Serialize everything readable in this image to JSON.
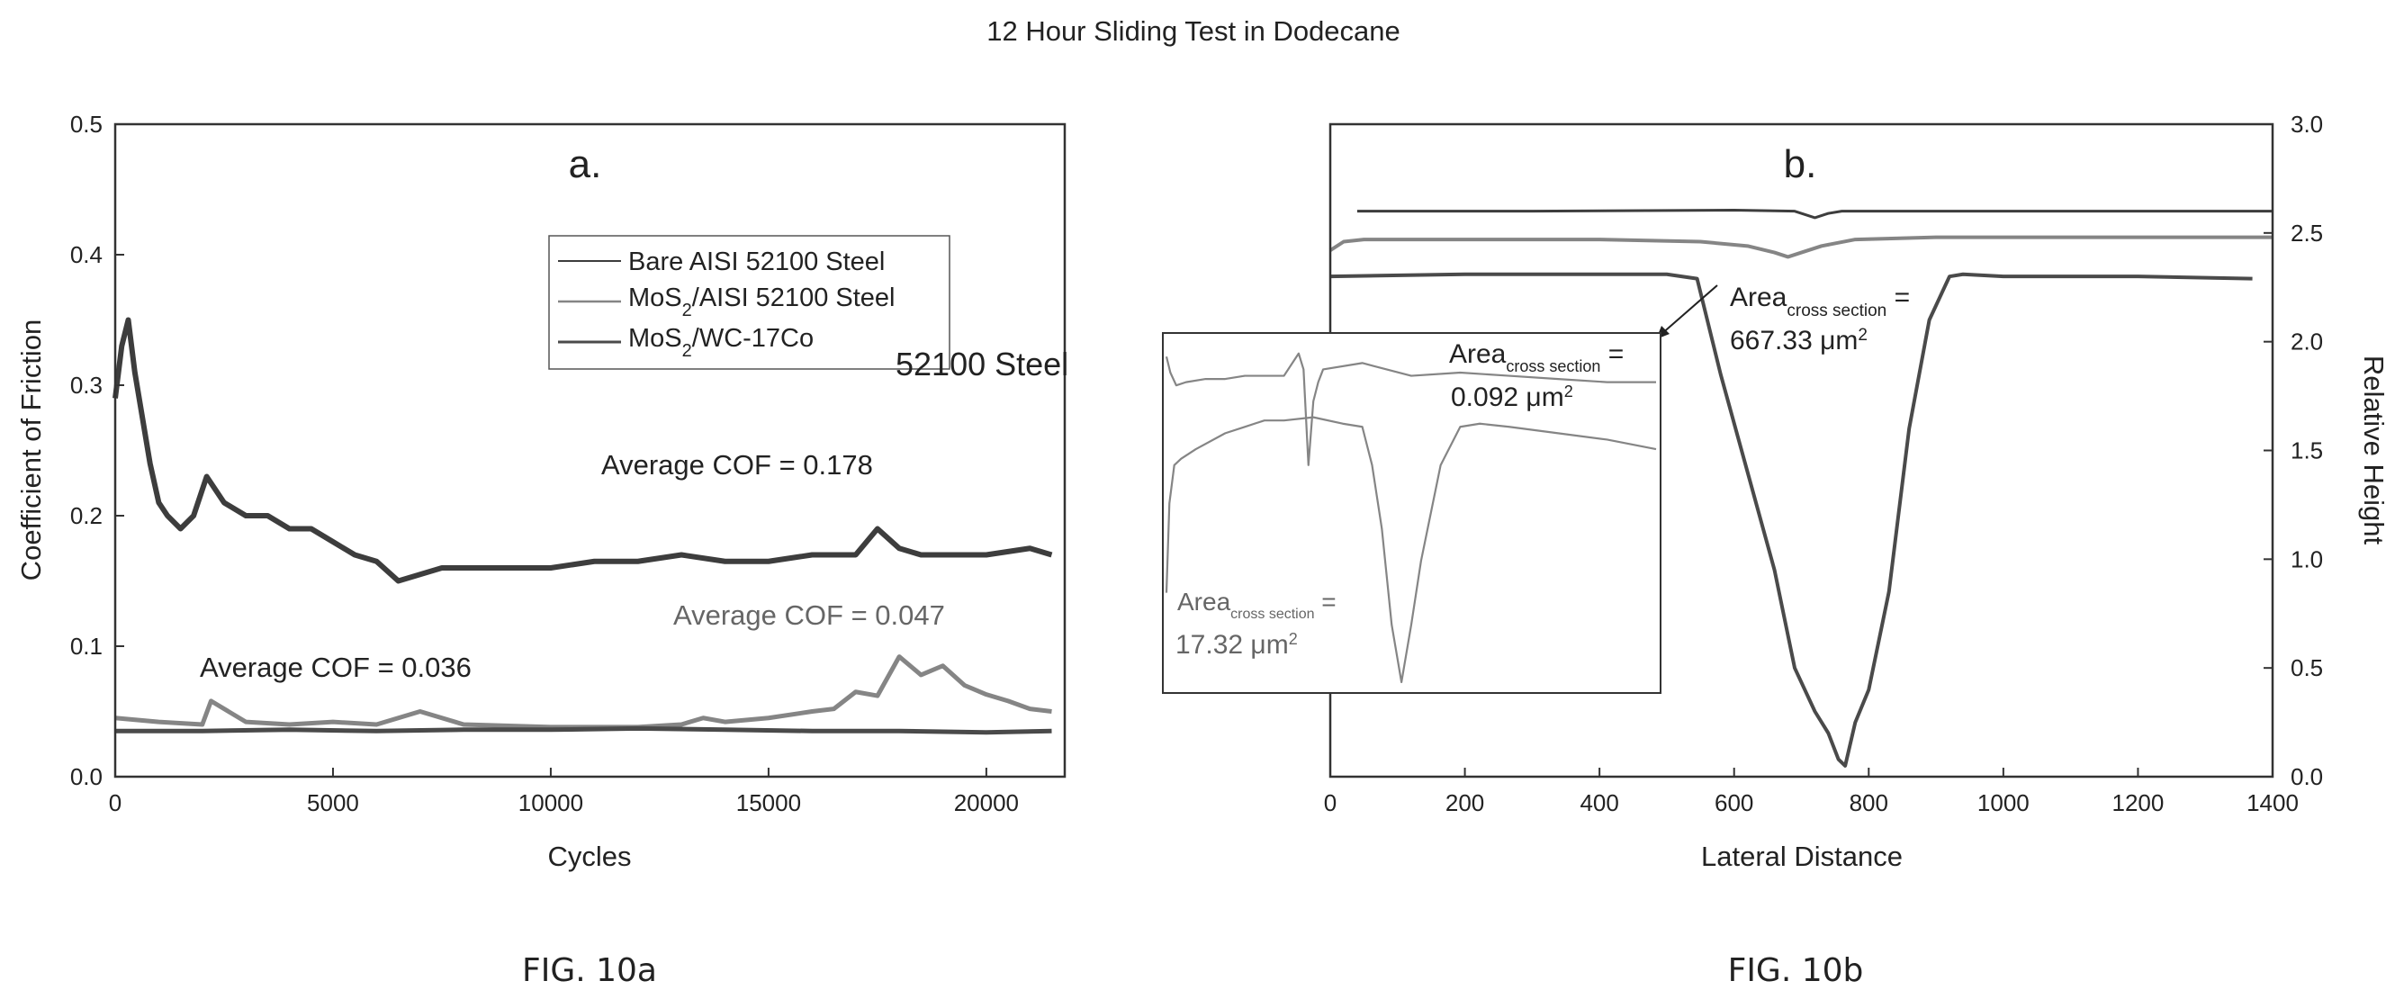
{
  "title": "12 Hour Sliding Test in Dodecane",
  "colors": {
    "bare_steel": "#3d3d3d",
    "mos2_steel": "#858585",
    "mos2_wc": "#4a4a4a",
    "axis": "#333333"
  },
  "chart_data": [
    {
      "type": "line",
      "panel_label": "a.",
      "caption": "FIG. 10a",
      "xlabel": "Cycles",
      "ylabel": "Coefficient of Friction",
      "xlim": [
        0,
        21800
      ],
      "ylim": [
        0,
        0.5
      ],
      "xticks": [
        "0",
        "5000",
        "10000",
        "15000",
        "20000"
      ],
      "yticks": [
        "0.0",
        "0.1",
        "0.2",
        "0.3",
        "0.4",
        "0.5"
      ],
      "legend_position": "top-right",
      "legend": [
        {
          "prefix": "Bare AISI 52100 Steel",
          "sub": "",
          "suffix": ""
        },
        {
          "prefix": "MoS",
          "sub": "2",
          "suffix": "/AISI 52100 Steel"
        },
        {
          "prefix": "MoS",
          "sub": "2",
          "suffix": "/WC-17Co"
        }
      ],
      "legend_note": "52100 Steel",
      "annotations": [
        "Average COF = 0.178",
        "Average COF = 0.047",
        "Average COF = 0.036"
      ],
      "series": [
        {
          "name": "Bare AISI 52100 Steel",
          "x": [
            0,
            150,
            300,
            450,
            600,
            800,
            1000,
            1200,
            1500,
            1800,
            2100,
            2500,
            3000,
            3500,
            4000,
            4500,
            5000,
            5500,
            6000,
            6500,
            7000,
            7500,
            8000,
            9000,
            10000,
            11000,
            12000,
            13000,
            14000,
            15000,
            16000,
            17000,
            17500,
            18000,
            18500,
            19000,
            20000,
            21000,
            21500
          ],
          "y": [
            0.29,
            0.33,
            0.35,
            0.31,
            0.28,
            0.24,
            0.21,
            0.2,
            0.19,
            0.2,
            0.23,
            0.21,
            0.2,
            0.2,
            0.19,
            0.19,
            0.18,
            0.17,
            0.165,
            0.15,
            0.155,
            0.16,
            0.16,
            0.16,
            0.16,
            0.165,
            0.165,
            0.17,
            0.165,
            0.165,
            0.17,
            0.17,
            0.19,
            0.175,
            0.17,
            0.17,
            0.17,
            0.175,
            0.17
          ]
        },
        {
          "name": "MoS2/AISI 52100 Steel",
          "x": [
            0,
            1000,
            2000,
            2200,
            3000,
            4000,
            5000,
            6000,
            7000,
            8000,
            10000,
            12000,
            13000,
            13500,
            14000,
            15000,
            16000,
            16500,
            17000,
            17500,
            18000,
            18500,
            19000,
            19500,
            20000,
            20500,
            21000,
            21500
          ],
          "y": [
            0.045,
            0.042,
            0.04,
            0.058,
            0.042,
            0.04,
            0.042,
            0.04,
            0.05,
            0.04,
            0.038,
            0.038,
            0.04,
            0.045,
            0.042,
            0.045,
            0.05,
            0.052,
            0.065,
            0.062,
            0.092,
            0.078,
            0.085,
            0.07,
            0.063,
            0.058,
            0.052,
            0.05
          ]
        },
        {
          "name": "MoS2/WC-17Co",
          "x": [
            0,
            2000,
            4000,
            6000,
            8000,
            10000,
            12000,
            14000,
            16000,
            18000,
            20000,
            21500
          ],
          "y": [
            0.035,
            0.035,
            0.036,
            0.035,
            0.036,
            0.036,
            0.037,
            0.036,
            0.035,
            0.035,
            0.034,
            0.035
          ]
        }
      ]
    },
    {
      "type": "line",
      "panel_label": "b.",
      "caption": "FIG. 10b",
      "xlabel": "Lateral Distance",
      "ylabel": "Relative Height",
      "xlim": [
        0,
        1400
      ],
      "ylim": [
        0,
        3.0
      ],
      "xticks": [
        "0",
        "200",
        "400",
        "600",
        "800",
        "1000",
        "1200",
        "1400"
      ],
      "yticks": [
        "0.0",
        "0.5",
        "1.0",
        "1.5",
        "2.0",
        "2.5",
        "3.0"
      ],
      "annotations": [
        {
          "prefix": "Area",
          "sub": "cross section",
          "suffix": " =",
          "value": "667.33 μm",
          "sup": "2"
        },
        {
          "prefix": "Area",
          "sub": "cross section",
          "suffix": " =",
          "value": "0.092 μm",
          "sup": "2"
        },
        {
          "prefix": "Area",
          "sub": "cross section",
          "suffix": " =",
          "value": "17.32 μm",
          "sup": "2"
        }
      ],
      "series": [
        {
          "name": "",
          "x": [
            40,
            300,
            600,
            690,
            720,
            740,
            760,
            800,
            1000,
            1200,
            1400
          ],
          "y": [
            2.6,
            2.6,
            2.605,
            2.6,
            2.57,
            2.59,
            2.6,
            2.6,
            2.6,
            2.6,
            2.6
          ]
        },
        {
          "name": "",
          "x": [
            0,
            20,
            50,
            200,
            400,
            550,
            620,
            660,
            680,
            700,
            730,
            780,
            900,
            1100,
            1400
          ],
          "y": [
            2.42,
            2.46,
            2.47,
            2.47,
            2.47,
            2.46,
            2.44,
            2.41,
            2.39,
            2.41,
            2.44,
            2.47,
            2.48,
            2.48,
            2.48
          ]
        },
        {
          "name": "",
          "x": [
            0,
            200,
            400,
            500,
            545,
            580,
            620,
            660,
            690,
            720,
            740,
            755,
            765,
            780,
            800,
            830,
            860,
            890,
            920,
            940,
            1000,
            1200,
            1370
          ],
          "y": [
            2.3,
            2.31,
            2.31,
            2.31,
            2.29,
            1.85,
            1.4,
            0.95,
            0.5,
            0.3,
            0.2,
            0.08,
            0.05,
            0.25,
            0.4,
            0.85,
            1.6,
            2.1,
            2.3,
            2.31,
            2.3,
            2.3,
            2.29
          ]
        }
      ],
      "inset": {
        "series": [
          {
            "name": "",
            "x": [
              0,
              4,
              10,
              20,
              40,
              60,
              80,
              100,
              120,
              135,
              140,
              145,
              150,
              155,
              160,
              200,
              250,
              300,
              350,
              400,
              450,
              500
            ],
            "y": [
              0.94,
              0.89,
              0.85,
              0.86,
              0.87,
              0.87,
              0.88,
              0.88,
              0.88,
              0.95,
              0.9,
              0.6,
              0.8,
              0.86,
              0.9,
              0.92,
              0.88,
              0.89,
              0.88,
              0.87,
              0.86,
              0.86
            ]
          },
          {
            "name": "",
            "x": [
              0,
              3,
              8,
              15,
              30,
              60,
              80,
              100,
              120,
              150,
              180,
              200,
              210,
              220,
              230,
              240,
              250,
              260,
              270,
              280,
              300,
              320,
              350,
              400,
              450,
              500
            ],
            "y": [
              0.2,
              0.48,
              0.6,
              0.62,
              0.65,
              0.7,
              0.72,
              0.74,
              0.74,
              0.75,
              0.73,
              0.72,
              0.6,
              0.4,
              0.1,
              -0.08,
              0.1,
              0.3,
              0.45,
              0.6,
              0.72,
              0.73,
              0.72,
              0.7,
              0.68,
              0.65
            ]
          }
        ]
      }
    }
  ]
}
